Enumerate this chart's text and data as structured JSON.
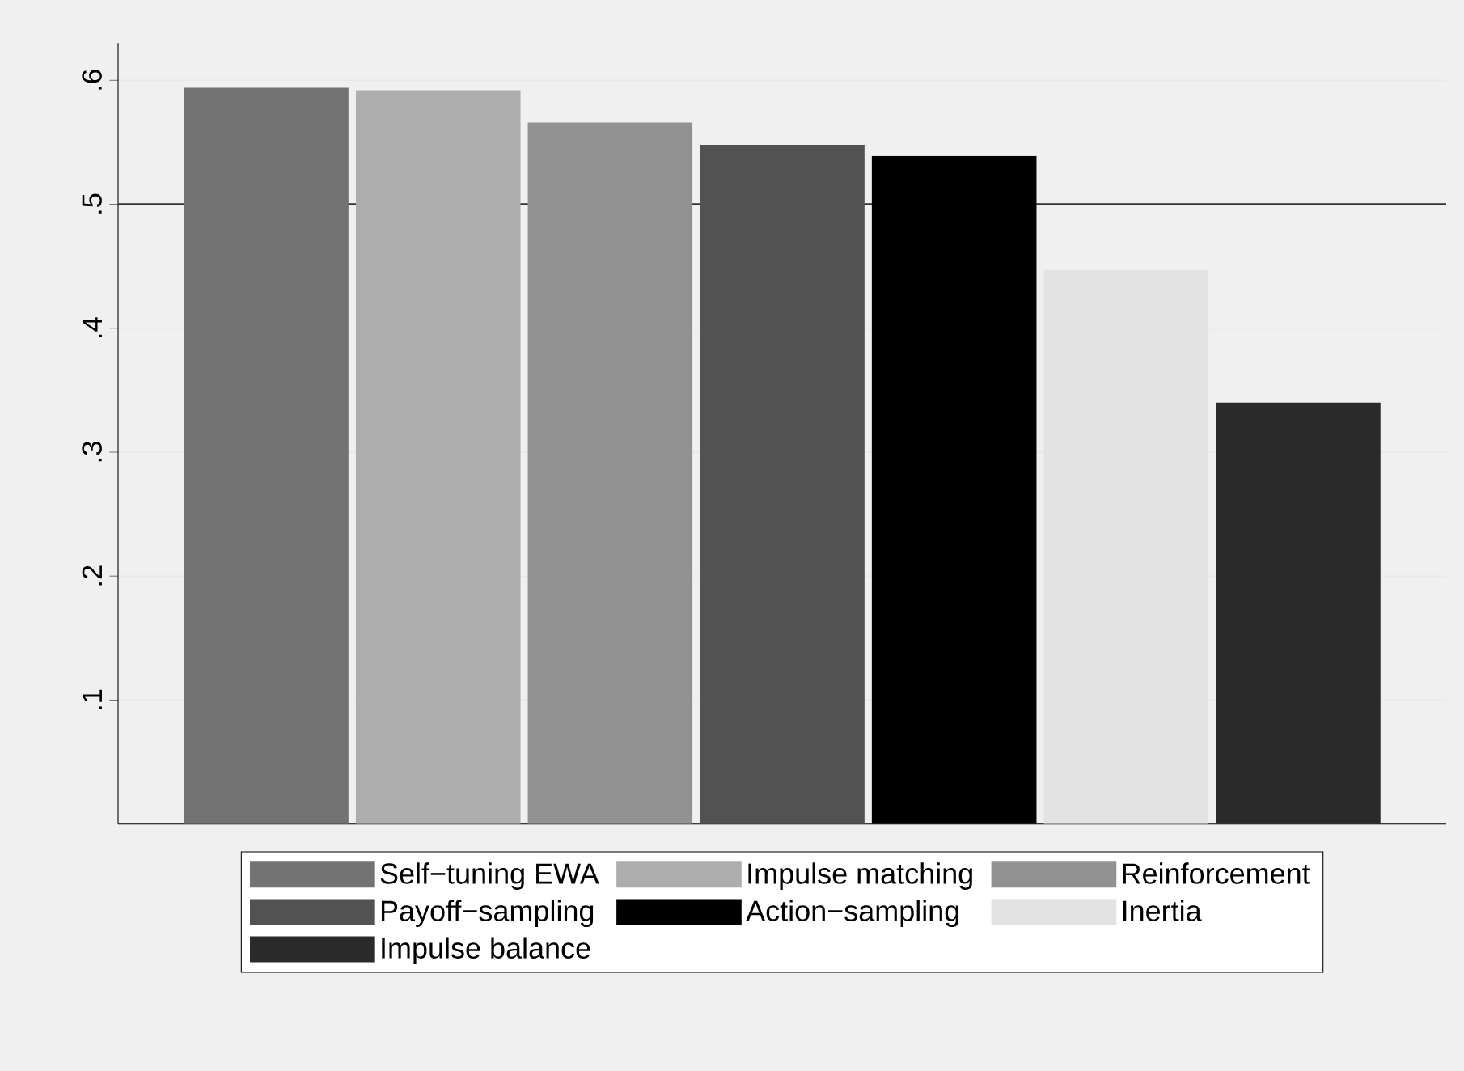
{
  "chart_data": {
    "type": "bar",
    "categories": [
      null
    ],
    "series": [
      {
        "name": "Self−tuning EWA",
        "color": "#737373",
        "values": [
          0.594
        ]
      },
      {
        "name": "Impulse matching",
        "color": "#adadad",
        "values": [
          0.592
        ]
      },
      {
        "name": "Reinforcement",
        "color": "#929292",
        "values": [
          0.566
        ]
      },
      {
        "name": "Payoff−sampling",
        "color": "#525252",
        "values": [
          0.548
        ]
      },
      {
        "name": "Action−sampling",
        "color": "#000000",
        "values": [
          0.539
        ]
      },
      {
        "name": "Inertia",
        "color": "#e3e3e3",
        "values": [
          0.447
        ]
      },
      {
        "name": "Impulse balance",
        "color": "#2a2a2a",
        "values": [
          0.34
        ]
      }
    ],
    "ylim": [
      0,
      0.63
    ],
    "yticks": [
      {
        "value": 0.1,
        "label": ".1"
      },
      {
        "value": 0.2,
        "label": ".2"
      },
      {
        "value": 0.3,
        "label": ".3"
      },
      {
        "value": 0.4,
        "label": ".4"
      },
      {
        "value": 0.5,
        "label": ".5"
      },
      {
        "value": 0.6,
        "label": ".6"
      }
    ],
    "ref_lines": [
      {
        "axis": "y",
        "value": 0.5,
        "color": "#333333"
      }
    ],
    "grid": "y",
    "legend": "bottom"
  }
}
